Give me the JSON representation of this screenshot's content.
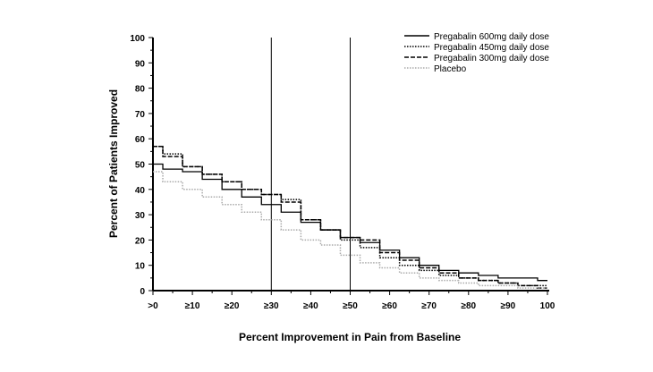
{
  "chart_data": {
    "type": "line",
    "title": "",
    "xlabel": "Percent Improvement in Pain from Baseline",
    "ylabel": "Percent of Patients Improved",
    "x_tick_labels": [
      ">0",
      "≥10",
      "≥20",
      "≥30",
      "≥40",
      "≥50",
      "≥60",
      "≥70",
      "≥80",
      "≥90",
      "100"
    ],
    "y_tick_labels": [
      "0",
      "10",
      "20",
      "30",
      "40",
      "50",
      "60",
      "70",
      "80",
      "90",
      "100"
    ],
    "xlim": [
      0,
      100
    ],
    "ylim": [
      0,
      100
    ],
    "grid": false,
    "legend_position": "top-right",
    "reference_lines_x": [
      30,
      50
    ],
    "x": [
      0,
      5,
      10,
      15,
      20,
      25,
      30,
      35,
      40,
      45,
      50,
      55,
      60,
      65,
      70,
      75,
      80,
      85,
      90,
      95,
      100
    ],
    "series": [
      {
        "name": "Pregabalin 600mg daily dose",
        "style": "solid",
        "color": "#000000",
        "values": [
          50,
          48,
          47,
          44,
          40,
          37,
          34,
          31,
          27,
          24,
          21,
          19,
          16,
          13,
          10,
          8,
          7,
          6,
          5,
          5,
          4
        ]
      },
      {
        "name": "Pregabalin 450mg daily dose",
        "style": "dotted",
        "color": "#000000",
        "values": [
          57,
          54,
          49,
          46,
          43,
          40,
          38,
          36,
          28,
          24,
          20,
          17,
          13,
          10,
          8,
          6,
          5,
          4,
          3,
          2,
          2
        ]
      },
      {
        "name": "Pregabalin 300mg daily dose",
        "style": "dashed",
        "color": "#000000",
        "values": [
          57,
          53,
          49,
          46,
          43,
          40,
          38,
          35,
          28,
          24,
          21,
          20,
          15,
          12,
          9,
          7,
          5,
          4,
          3,
          2,
          1
        ]
      },
      {
        "name": "Placebo",
        "style": "dotted",
        "color": "#aaaaaa",
        "values": [
          47,
          43,
          40,
          37,
          34,
          31,
          28,
          24,
          20,
          18,
          14,
          11,
          9,
          7,
          5,
          4,
          3,
          2,
          2,
          1,
          1
        ]
      }
    ]
  }
}
